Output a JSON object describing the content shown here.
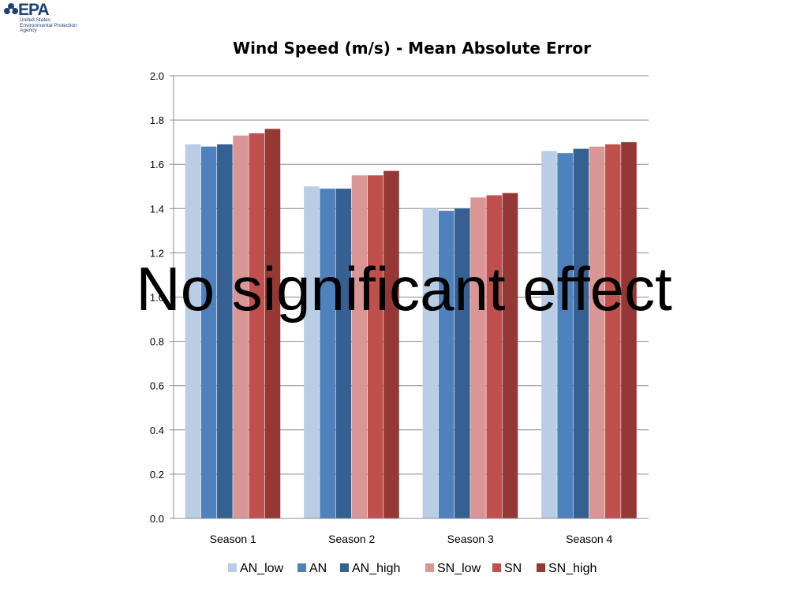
{
  "logo": {
    "word": "EPA",
    "agency_lines": [
      "United States",
      "Environmental Protection",
      "Agency"
    ],
    "color": "#1f3f75"
  },
  "chart_data": {
    "type": "bar",
    "title": "Wind Speed (m/s) - Mean Absolute Error",
    "xlabel": "",
    "ylabel": "",
    "ylim": [
      0,
      2.0
    ],
    "yticks": [
      "0.0",
      "0.2",
      "0.4",
      "0.6",
      "0.8",
      "1.0",
      "1.2",
      "1.4",
      "1.6",
      "1.8",
      "2.0"
    ],
    "grid": true,
    "legend_position": "bottom",
    "categories": [
      "Season 1",
      "Season 2",
      "Season 3",
      "Season 4"
    ],
    "series": [
      {
        "name": "AN_low",
        "color": "#b9cde5",
        "values": [
          1.69,
          1.5,
          1.4,
          1.66
        ]
      },
      {
        "name": "AN",
        "color": "#4f81bd",
        "values": [
          1.68,
          1.49,
          1.39,
          1.65
        ]
      },
      {
        "name": "AN_high",
        "color": "#366092",
        "values": [
          1.69,
          1.49,
          1.4,
          1.67
        ]
      },
      {
        "name": "SN_low",
        "color": "#da9694",
        "values": [
          1.73,
          1.55,
          1.45,
          1.68
        ]
      },
      {
        "name": "SN",
        "color": "#c0504d",
        "values": [
          1.74,
          1.55,
          1.46,
          1.69
        ]
      },
      {
        "name": "SN_high",
        "color": "#953735",
        "values": [
          1.76,
          1.57,
          1.47,
          1.7
        ]
      }
    ]
  },
  "overlay": {
    "text": "No significant effect"
  }
}
